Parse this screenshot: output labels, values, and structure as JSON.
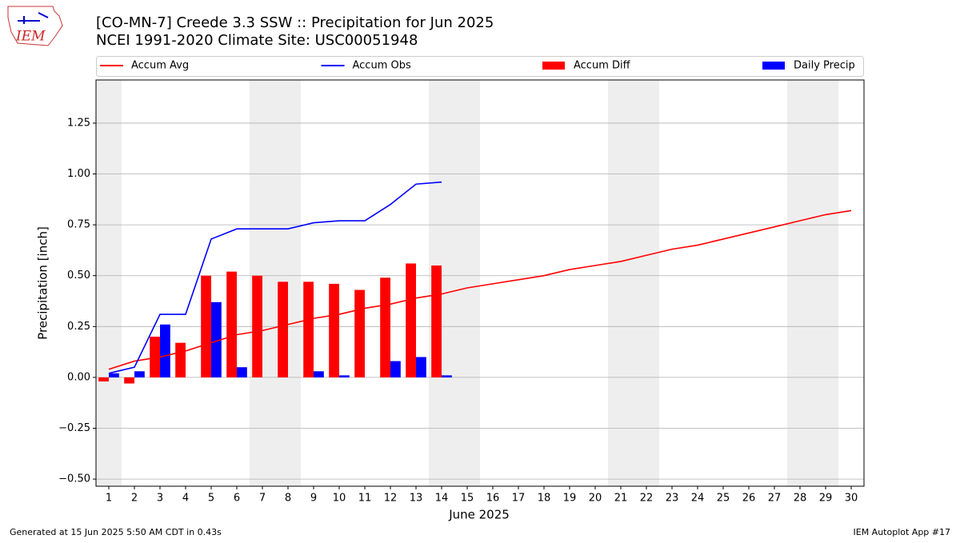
{
  "chart_data": {
    "type": "combo",
    "title": "[CO-MN-7] Creede 3.3 SSW :: Precipitation for Jun 2025",
    "subtitle": "NCEI 1991-2020 Climate Site: USC00051948",
    "x_label": "June 2025",
    "y_label": "Precipitation [inch]",
    "x": [
      1,
      2,
      3,
      4,
      5,
      6,
      7,
      8,
      9,
      10,
      11,
      12,
      13,
      14,
      15,
      16,
      17,
      18,
      19,
      20,
      21,
      22,
      23,
      24,
      25,
      26,
      27,
      28,
      29,
      30
    ],
    "xlim": [
      0.5,
      30.5
    ],
    "xticks": [
      1,
      2,
      3,
      4,
      5,
      6,
      7,
      8,
      9,
      10,
      11,
      12,
      13,
      14,
      15,
      16,
      17,
      18,
      19,
      20,
      21,
      22,
      23,
      24,
      25,
      26,
      27,
      28,
      29,
      30
    ],
    "ylim": [
      -0.535,
      1.462
    ],
    "yticks": [
      {
        "value": -0.5,
        "label": "−0.50"
      },
      {
        "value": -0.25,
        "label": "−0.25"
      },
      {
        "value": 0,
        "label": "0.00"
      },
      {
        "value": 0.25,
        "label": "0.25"
      },
      {
        "value": 0.5,
        "label": "0.50"
      },
      {
        "value": 0.75,
        "label": "0.75"
      },
      {
        "value": 1.0,
        "label": "1.00"
      },
      {
        "value": 1.25,
        "label": "1.25"
      }
    ],
    "grid": true,
    "weekend_shading": [
      [
        0.5,
        1.5
      ],
      [
        6.5,
        8.5
      ],
      [
        13.5,
        15.5
      ],
      [
        20.5,
        22.5
      ],
      [
        27.5,
        29.5
      ]
    ],
    "shading_color": "#eeeeee",
    "legend": "top",
    "series": [
      {
        "name": "Accum Avg",
        "type": "line",
        "color": "#ff0000",
        "values": [
          0.04,
          0.08,
          0.1,
          0.13,
          0.17,
          0.21,
          0.23,
          0.26,
          0.29,
          0.31,
          0.34,
          0.36,
          0.39,
          0.41,
          0.44,
          0.46,
          0.48,
          0.5,
          0.53,
          0.55,
          0.57,
          0.6,
          0.63,
          0.65,
          0.68,
          0.71,
          0.74,
          0.77,
          0.8,
          0.82
        ]
      },
      {
        "name": "Accum Obs",
        "type": "line",
        "color": "#0000ff",
        "values": [
          0.02,
          0.05,
          0.31,
          0.31,
          0.68,
          0.73,
          0.73,
          0.73,
          0.76,
          0.77,
          0.77,
          0.85,
          0.95,
          0.96,
          null,
          null,
          null,
          null,
          null,
          null,
          null,
          null,
          null,
          null,
          null,
          null,
          null,
          null,
          null,
          null
        ]
      },
      {
        "name": "Accum Diff",
        "type": "bar",
        "offset": -0.4,
        "color": "#ff0000",
        "values": [
          -0.02,
          -0.03,
          0.2,
          0.17,
          0.5,
          0.52,
          0.5,
          0.47,
          0.47,
          0.46,
          0.43,
          0.49,
          0.56,
          0.55,
          null,
          null,
          null,
          null,
          null,
          null,
          null,
          null,
          null,
          null,
          null,
          null,
          null,
          null,
          null,
          null
        ]
      },
      {
        "name": "Daily Precip",
        "type": "bar",
        "offset": 0,
        "color": "#0000ff",
        "values": [
          0.02,
          0.03,
          0.26,
          0,
          0.37,
          0.05,
          0,
          0,
          0.03,
          0.01,
          0,
          0.08,
          0.1,
          0.01,
          null,
          null,
          null,
          null,
          null,
          null,
          null,
          null,
          null,
          null,
          null,
          null,
          null,
          null,
          null,
          null
        ]
      }
    ]
  },
  "footer": {
    "left": "Generated at 15 Jun 2025 5:50 AM CDT in 0.43s",
    "right": "IEM Autoplot App #17"
  },
  "logo": {
    "text": "IEM"
  }
}
